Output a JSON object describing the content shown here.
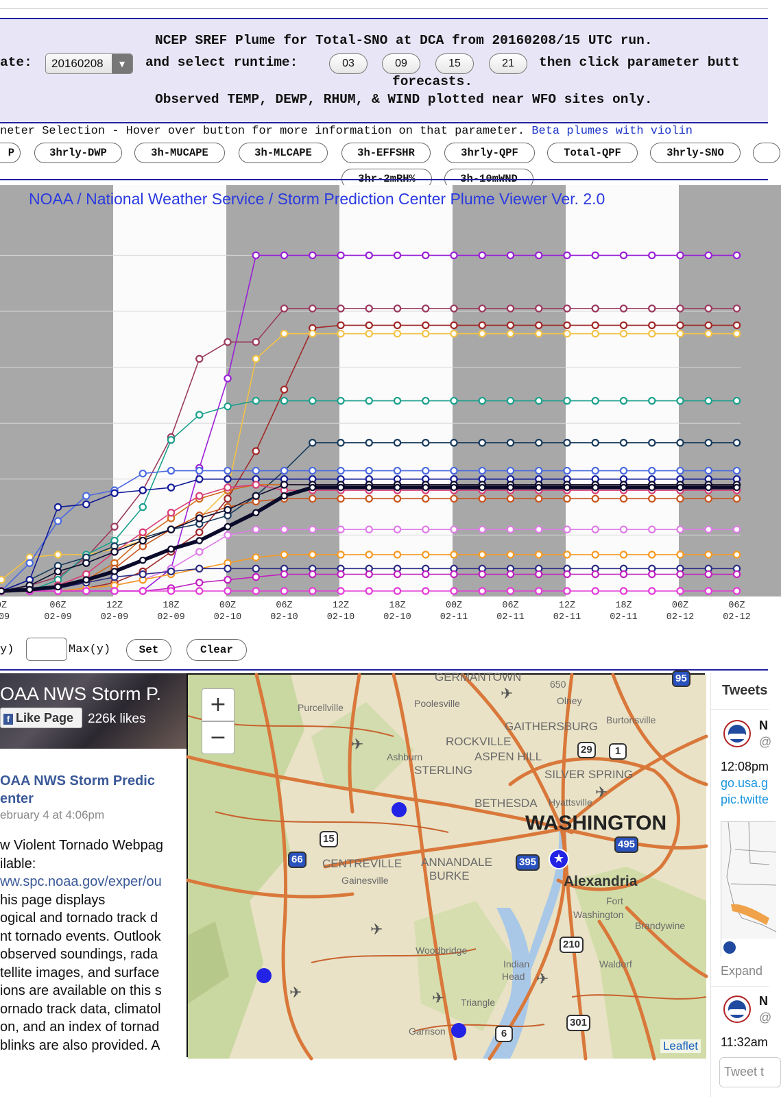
{
  "header": {
    "line1": "NCEP SREF Plume for Total-SNO at DCA from 20160208/15 UTC run.",
    "date_label": "ate:",
    "date_value": "20160208",
    "date_arrow": "▼",
    "runtime_label": "and select runtime:",
    "runtimes": [
      "03",
      "09",
      "15",
      "21"
    ],
    "then_text": "then click parameter butt",
    "line3": "forecasts.",
    "line4": "Observed TEMP, DEWP, RHUM, & WIND plotted near WFO sites only."
  },
  "param_bar": {
    "intro": "neter Selection - Hover over button for more information on that parameter.",
    "beta_link": "Beta plumes with violin",
    "buttons_row1": [
      "P",
      "3hrly-DWP",
      "3h-MUCAPE",
      "3h-MLCAPE",
      "3h-EFFSHR",
      "3hrly-QPF",
      "Total-QPF",
      "3hrly-SNO"
    ],
    "buttons_row2": [
      "3hr-2mRH%",
      "3h-10mWND"
    ]
  },
  "chart_data": {
    "type": "line",
    "title": "NOAA / National Weather Service / Storm Prediction Center Plume Viewer Ver. 2.0",
    "x_tick_labels": [
      [
        "0Z",
        "-09"
      ],
      [
        "06Z",
        "02-09"
      ],
      [
        "12Z",
        "02-09"
      ],
      [
        "18Z",
        "02-09"
      ],
      [
        "00Z",
        "02-10"
      ],
      [
        "06Z",
        "02-10"
      ],
      [
        "12Z",
        "02-10"
      ],
      [
        "18Z",
        "02-10"
      ],
      [
        "00Z",
        "02-11"
      ],
      [
        "06Z",
        "02-11"
      ],
      [
        "12Z",
        "02-11"
      ],
      [
        "18Z",
        "02-11"
      ],
      [
        "00Z",
        "02-12"
      ],
      [
        "06Z",
        "02-12"
      ]
    ],
    "ylim": [
      0,
      12.5
    ],
    "grid": true,
    "series": [
      {
        "color": "#9a1fd6",
        "values": [
          0,
          0,
          0,
          0,
          0,
          0,
          0.8,
          4.4,
          7.6,
          12,
          12,
          12,
          12,
          12,
          12,
          12,
          12,
          12,
          12,
          12,
          12,
          12,
          12,
          12,
          12,
          12,
          12
        ]
      },
      {
        "color": "#9a3a5e",
        "values": [
          0,
          0.2,
          0.5,
          1.2,
          2.3,
          3.6,
          5.5,
          8.3,
          8.9,
          8.9,
          10.1,
          10.1,
          10.1,
          10.1,
          10.1,
          10.1,
          10.1,
          10.1,
          10.1,
          10.1,
          10.1,
          10.1,
          10.1,
          10.1,
          10.1,
          10.1,
          10.1
        ]
      },
      {
        "color": "#a02828",
        "values": [
          0,
          0,
          0,
          0.1,
          0.3,
          0.7,
          1.4,
          2.1,
          3.3,
          5.0,
          7.2,
          9.4,
          9.5,
          9.5,
          9.5,
          9.5,
          9.5,
          9.5,
          9.5,
          9.5,
          9.5,
          9.5,
          9.5,
          9.5,
          9.5,
          9.5,
          9.5
        ]
      },
      {
        "color": "#f3c246",
        "values": [
          0.4,
          1.2,
          1.3,
          1.3,
          1.5,
          1.8,
          2.2,
          2.6,
          3.6,
          8.3,
          9.2,
          9.2,
          9.2,
          9.2,
          9.2,
          9.2,
          9.2,
          9.2,
          9.2,
          9.2,
          9.2,
          9.2,
          9.2,
          9.2,
          9.2,
          9.2,
          9.2
        ]
      },
      {
        "color": "#1ba08c",
        "values": [
          0,
          0,
          0.4,
          1.3,
          1.8,
          3.0,
          5.4,
          6.3,
          6.6,
          6.8,
          6.8,
          6.8,
          6.8,
          6.8,
          6.8,
          6.8,
          6.8,
          6.8,
          6.8,
          6.8,
          6.8,
          6.8,
          6.8,
          6.8,
          6.8,
          6.8,
          6.8
        ]
      },
      {
        "color": "#173a5c",
        "values": [
          0,
          0.4,
          0.9,
          1.2,
          1.6,
          1.9,
          2.2,
          2.4,
          2.7,
          3.4,
          4.3,
          5.3,
          5.3,
          5.3,
          5.3,
          5.3,
          5.3,
          5.3,
          5.3,
          5.3,
          5.3,
          5.3,
          5.3,
          5.3,
          5.3,
          5.3,
          5.3
        ]
      },
      {
        "color": "#4a6adf",
        "values": [
          0,
          1.0,
          2.5,
          3.4,
          3.6,
          4.2,
          4.3,
          4.3,
          4.3,
          4.3,
          4.3,
          4.3,
          4.3,
          4.3,
          4.3,
          4.3,
          4.3,
          4.3,
          4.3,
          4.3,
          4.3,
          4.3,
          4.3,
          4.3,
          4.3,
          4.3,
          4.3
        ]
      },
      {
        "color": "#111a96",
        "values": [
          0,
          0.4,
          3.0,
          3.1,
          3.5,
          3.6,
          3.7,
          4.0,
          4.0,
          4.0,
          4.0,
          4.0,
          4.0,
          4.0,
          4.0,
          4.0,
          4.0,
          4.0,
          4.0,
          4.0,
          4.0,
          4.0,
          4.0,
          4.0,
          4.0,
          4.0,
          4.0
        ]
      },
      {
        "color": "#d26a1a",
        "values": [
          0,
          0,
          0.2,
          0.4,
          1.0,
          1.9,
          2.6,
          3.3,
          3.6,
          3.8,
          3.8,
          3.8,
          3.8,
          3.8,
          3.8,
          3.8,
          3.8,
          3.8,
          3.8,
          3.8,
          3.8,
          3.8,
          3.8,
          3.8,
          3.8,
          3.8,
          3.8
        ]
      },
      {
        "color": "#d83c78",
        "values": [
          0,
          0,
          0.2,
          0.6,
          1.4,
          2.1,
          2.8,
          3.4,
          3.7,
          3.8,
          3.6,
          3.6,
          3.6,
          3.6,
          3.6,
          3.6,
          3.6,
          3.6,
          3.6,
          3.6,
          3.6,
          3.6,
          3.6,
          3.6,
          3.6,
          3.6,
          3.6
        ]
      },
      {
        "color": "#c8561e",
        "values": [
          0,
          0,
          0.1,
          0.3,
          0.8,
          1.6,
          2.2,
          2.7,
          3.0,
          3.2,
          3.3,
          3.3,
          3.3,
          3.3,
          3.3,
          3.3,
          3.3,
          3.3,
          3.3,
          3.3,
          3.3,
          3.3,
          3.3,
          3.3,
          3.3,
          3.3,
          3.3
        ]
      },
      {
        "color": "#0c0c30",
        "values": [
          0,
          0.2,
          0.7,
          1.0,
          1.4,
          1.8,
          2.2,
          2.6,
          2.9,
          3.4,
          3.8,
          3.8,
          3.8,
          3.8,
          3.8,
          3.8,
          3.8,
          3.8,
          3.8,
          3.8,
          3.8,
          3.8,
          3.8,
          3.8,
          3.8,
          3.8,
          3.8
        ]
      },
      {
        "color": "#df7be8",
        "values": [
          0,
          0,
          0,
          0.1,
          0.2,
          0.4,
          0.8,
          1.4,
          2.0,
          2.2,
          2.2,
          2.2,
          2.2,
          2.2,
          2.2,
          2.2,
          2.2,
          2.2,
          2.2,
          2.2,
          2.2,
          2.2,
          2.2,
          2.2,
          2.2,
          2.2,
          2.2
        ]
      },
      {
        "color": "#f59a24",
        "values": [
          0,
          0,
          0,
          0.1,
          0.2,
          0.4,
          0.6,
          0.8,
          1.0,
          1.2,
          1.3,
          1.3,
          1.3,
          1.3,
          1.3,
          1.3,
          1.3,
          1.3,
          1.3,
          1.3,
          1.3,
          1.3,
          1.3,
          1.3,
          1.3,
          1.3,
          1.3
        ]
      },
      {
        "color": "#2b2b84",
        "values": [
          0,
          0,
          0.1,
          0.3,
          0.5,
          0.6,
          0.7,
          0.8,
          0.8,
          0.8,
          0.8,
          0.8,
          0.8,
          0.8,
          0.8,
          0.8,
          0.8,
          0.8,
          0.8,
          0.8,
          0.8,
          0.8,
          0.8,
          0.8,
          0.8,
          0.8,
          0.8
        ]
      },
      {
        "color": "#c020c0",
        "values": [
          0,
          0,
          0,
          0,
          0,
          0,
          0.1,
          0.3,
          0.4,
          0.5,
          0.6,
          0.6,
          0.6,
          0.6,
          0.6,
          0.6,
          0.6,
          0.6,
          0.6,
          0.6,
          0.6,
          0.6,
          0.6,
          0.6,
          0.6,
          0.6,
          0.6
        ]
      },
      {
        "color": "#e43ad8",
        "values": [
          0,
          0,
          0,
          0,
          0,
          0,
          0,
          0,
          0,
          0,
          0,
          0,
          0,
          0,
          0,
          0,
          0,
          0,
          0,
          0,
          0,
          0,
          0,
          0,
          0,
          0,
          0
        ]
      }
    ],
    "mean_series_color": "#0a0a2a",
    "mean_values": [
      0,
      0.05,
      0.15,
      0.4,
      0.7,
      1.1,
      1.5,
      1.8,
      2.3,
      2.8,
      3.4,
      3.7,
      3.7,
      3.7,
      3.7,
      3.7,
      3.7,
      3.7,
      3.7,
      3.7,
      3.7,
      3.7,
      3.7,
      3.7,
      3.7,
      3.7,
      3.7
    ]
  },
  "minmax": {
    "min_label_tail": "y)",
    "max_label": "Max(y)",
    "set_label": "Set",
    "clear_label": "Clear"
  },
  "facebook": {
    "page_name": "OAA NWS Storm P.",
    "like_button": "Like Page",
    "like_icon": "f",
    "likes": "226k likes",
    "post_title_1": "OAA NWS Storm Predic",
    "post_title_2": "enter",
    "post_date": "ebruary 4 at 4:06pm",
    "post_lines": [
      "w Violent Tornado Webpag",
      "ilable:",
      "ww.spc.noaa.gov/exper/ou",
      "his page displays",
      "ogical and tornado track d",
      "nt tornado events. Outlook",
      " observed soundings, rada",
      "tellite images, and surface",
      "ions are available on this s",
      "ornado track data, climatol",
      "on, and an index of tornad",
      "blinks are also provided. A"
    ]
  },
  "map": {
    "zoom_in": "+",
    "zoom_out": "−",
    "attribution": "Leaflet",
    "labels": [
      {
        "text": "GERMANTOWN",
        "cls": "ml-med"
      },
      {
        "text": "650",
        "cls": "ml-small"
      },
      {
        "text": "Olney",
        "cls": "ml-small"
      },
      {
        "text": "Purcellville",
        "cls": "ml-small"
      },
      {
        "text": "Poolesville",
        "cls": "ml-small"
      },
      {
        "text": "GAITHERSBURG",
        "cls": "ml-med"
      },
      {
        "text": "Burtonsville",
        "cls": "ml-small"
      },
      {
        "text": "ROCKVILLE",
        "cls": "ml-med"
      },
      {
        "text": "ASPEN HILL",
        "cls": "ml-med"
      },
      {
        "text": "Ashburn",
        "cls": "ml-small"
      },
      {
        "text": "STERLING",
        "cls": "ml-med"
      },
      {
        "text": "SILVER SPRING",
        "cls": "ml-med"
      },
      {
        "text": "BETHESDA",
        "cls": "ml-med"
      },
      {
        "text": "Hyattsville",
        "cls": "ml-small"
      },
      {
        "text": "WASHINGTON",
        "cls": "ml-big"
      },
      {
        "text": "CENTREVILLE",
        "cls": "ml-med"
      },
      {
        "text": "Gainesville",
        "cls": "ml-small"
      },
      {
        "text": "ANNANDALE",
        "cls": "ml-med"
      },
      {
        "text": "BURKE",
        "cls": "ml-med"
      },
      {
        "text": "Alexandria",
        "cls": "ml-bold"
      },
      {
        "text": "Fort",
        "cls": "ml-small"
      },
      {
        "text": "Washington",
        "cls": "ml-small"
      },
      {
        "text": "Brandywine",
        "cls": "ml-small"
      },
      {
        "text": "Woodbridge",
        "cls": "ml-small"
      },
      {
        "text": "Indian",
        "cls": "ml-small"
      },
      {
        "text": "Head",
        "cls": "ml-small"
      },
      {
        "text": "Waldorf",
        "cls": "ml-small"
      },
      {
        "text": "Triangle",
        "cls": "ml-small"
      },
      {
        "text": "Garrison",
        "cls": "ml-small"
      }
    ],
    "shields": [
      "15",
      "66",
      "395",
      "495",
      "29",
      "1",
      "210",
      "301",
      "6",
      "95"
    ]
  },
  "twitter": {
    "title": "Tweets",
    "t1_name": "N",
    "t1_handle": "@",
    "t1_time": "12:08pm",
    "t1_link1": "go.usa.g",
    "t1_link2": "pic.twitte",
    "expand": "Expand",
    "t2_name": "N",
    "t2_handle": "@",
    "t2_time": "11:32am",
    "input_placeholder": "Tweet t"
  }
}
